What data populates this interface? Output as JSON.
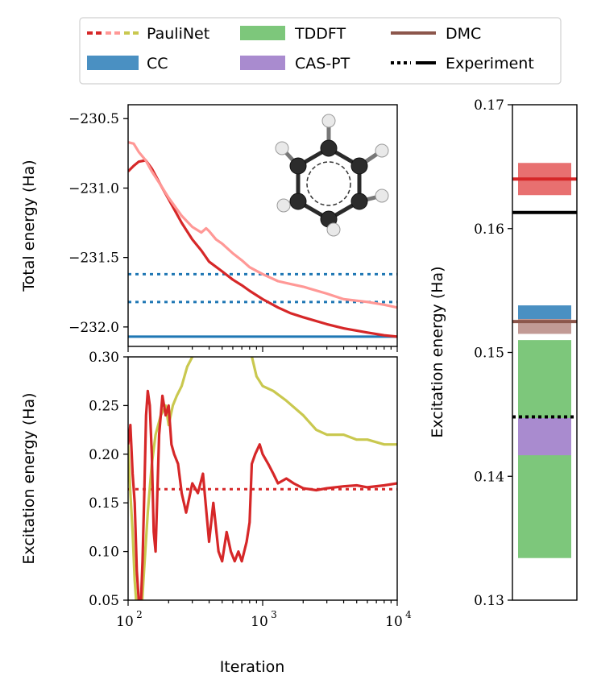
{
  "legend": {
    "placement": "top",
    "entries": [
      {
        "id": "paulinet",
        "label": "PauliNet",
        "style": "line-dashed-pair",
        "colors": [
          "#d62728",
          "#ff9896",
          "#c9c84f"
        ]
      },
      {
        "id": "tddft",
        "label": "TDDFT",
        "style": "patch",
        "color": "#7dc77b"
      },
      {
        "id": "dmc",
        "label": "DMC",
        "style": "line",
        "color": "#8c564b"
      },
      {
        "id": "cc",
        "label": "CC",
        "style": "patch",
        "color": "#4a90c2"
      },
      {
        "id": "caspt",
        "label": "CAS-PT",
        "style": "patch",
        "color": "#a98bcf"
      },
      {
        "id": "experiment",
        "label": "Experiment",
        "style": "line-dotted-solid",
        "color": "#000000"
      }
    ]
  },
  "chart_data": [
    {
      "id": "total-energy",
      "type": "line",
      "xscale": "log",
      "xlim": [
        100,
        10000
      ],
      "ylim": [
        -232.14,
        -230.4
      ],
      "ylabel": "Total energy (Ha)",
      "yticks": [
        -230.5,
        -231.0,
        -231.5,
        -232.0
      ],
      "ytick_labels": [
        "−230.5",
        "−231.0",
        "−231.5",
        "−232.0"
      ],
      "hlines": [
        {
          "name": "CC (excited)",
          "y": -231.62,
          "color": "#1f77b4",
          "style": "dotted"
        },
        {
          "name": "CC (ground, dotted)",
          "y": -231.82,
          "color": "#1f77b4",
          "style": "dotted"
        },
        {
          "name": "CC (ground)",
          "y": -232.07,
          "color": "#1f77b4",
          "style": "solid"
        }
      ],
      "series": [
        {
          "id": "ground",
          "color": "#d62728",
          "x": [
            100,
            110,
            120,
            135,
            150,
            175,
            200,
            250,
            300,
            350,
            400,
            500,
            600,
            700,
            800,
            1000,
            1300,
            1600,
            2000,
            3000,
            4000,
            6000,
            8000,
            10000
          ],
          "y": [
            -230.88,
            -230.84,
            -230.81,
            -230.8,
            -230.86,
            -230.98,
            -231.08,
            -231.25,
            -231.37,
            -231.45,
            -231.53,
            -231.6,
            -231.66,
            -231.7,
            -231.74,
            -231.8,
            -231.86,
            -231.9,
            -231.93,
            -231.98,
            -232.01,
            -232.04,
            -232.06,
            -232.07
          ]
        },
        {
          "id": "excited",
          "color": "#ff9896",
          "x": [
            100,
            110,
            120,
            135,
            150,
            175,
            200,
            250,
            300,
            350,
            380,
            400,
            450,
            500,
            600,
            700,
            800,
            1000,
            1300,
            1600,
            2000,
            3000,
            4000,
            6000,
            8000,
            10000
          ],
          "y": [
            -230.67,
            -230.68,
            -230.74,
            -230.8,
            -230.88,
            -230.98,
            -231.07,
            -231.2,
            -231.28,
            -231.32,
            -231.29,
            -231.31,
            -231.37,
            -231.4,
            -231.47,
            -231.52,
            -231.57,
            -231.62,
            -231.67,
            -231.69,
            -231.71,
            -231.76,
            -231.8,
            -231.82,
            -231.84,
            -231.86
          ]
        }
      ],
      "inset_image": "benzene-molecule"
    },
    {
      "id": "excitation-energy-convergence",
      "type": "line",
      "xscale": "log",
      "xlim": [
        100,
        10000
      ],
      "ylim": [
        0.05,
        0.3
      ],
      "ylabel": "Excitation energy (Ha)",
      "xlabel": "Iteration",
      "yticks": [
        0.05,
        0.1,
        0.15,
        0.2,
        0.25,
        0.3
      ],
      "ytick_labels": [
        "0.05",
        "0.10",
        "0.15",
        "0.20",
        "0.25",
        "0.30"
      ],
      "xticks": [
        100,
        1000,
        10000
      ],
      "xtick_labels": [
        [
          "10",
          "2"
        ],
        [
          "10",
          "3"
        ],
        [
          "10",
          "4"
        ]
      ],
      "hlines": [
        {
          "name": "PauliNet reference",
          "y": 0.164,
          "color": "#d62728",
          "style": "dotted"
        }
      ],
      "series": [
        {
          "id": "difference-unsmoothed",
          "color": "#c9c84f",
          "x": [
            100,
            104,
            108,
            112,
            116,
            120,
            125,
            130,
            140,
            150,
            160,
            175,
            190,
            200,
            215,
            230,
            250,
            275,
            300,
            340,
            380,
            420,
            500,
            600,
            700,
            800,
            900,
            1000,
            1200,
            1500,
            2000,
            2500,
            3000,
            4000,
            5000,
            6000,
            8000,
            10000
          ],
          "y": [
            0.21,
            0.16,
            0.12,
            0.07,
            0.04,
            0.02,
            0.03,
            0.07,
            0.14,
            0.19,
            0.22,
            0.24,
            0.25,
            0.23,
            0.25,
            0.26,
            0.27,
            0.29,
            0.3,
            0.31,
            0.31,
            0.31,
            0.31,
            0.31,
            0.31,
            0.31,
            0.28,
            0.27,
            0.265,
            0.255,
            0.24,
            0.225,
            0.22,
            0.22,
            0.215,
            0.215,
            0.21,
            0.21
          ]
        },
        {
          "id": "difference",
          "color": "#d62728",
          "x": [
            100,
            104,
            108,
            112,
            116,
            120,
            124,
            128,
            132,
            136,
            140,
            145,
            150,
            155,
            160,
            170,
            180,
            190,
            200,
            210,
            220,
            235,
            250,
            270,
            300,
            330,
            360,
            400,
            430,
            470,
            500,
            540,
            580,
            620,
            660,
            700,
            760,
            800,
            830,
            880,
            950,
            1000,
            1100,
            1200,
            1300,
            1500,
            1700,
            2000,
            2500,
            3000,
            4000,
            5000,
            6000,
            8000,
            10000
          ],
          "y": [
            0.21,
            0.23,
            0.18,
            0.15,
            0.08,
            0.05,
            0.04,
            0.09,
            0.16,
            0.24,
            0.265,
            0.25,
            0.2,
            0.12,
            0.1,
            0.22,
            0.26,
            0.24,
            0.25,
            0.21,
            0.2,
            0.19,
            0.16,
            0.14,
            0.17,
            0.16,
            0.18,
            0.11,
            0.15,
            0.1,
            0.09,
            0.12,
            0.1,
            0.09,
            0.1,
            0.09,
            0.11,
            0.13,
            0.19,
            0.2,
            0.21,
            0.2,
            0.19,
            0.18,
            0.17,
            0.175,
            0.17,
            0.165,
            0.163,
            0.165,
            0.167,
            0.168,
            0.166,
            0.168,
            0.17
          ]
        }
      ]
    },
    {
      "id": "excitation-energy-comparison",
      "type": "bar",
      "ylim": [
        0.13,
        0.17
      ],
      "ylabel": "Excitation energy (Ha)",
      "yticks": [
        0.13,
        0.14,
        0.15,
        0.16,
        0.17
      ],
      "ytick_labels": [
        "0.13",
        "0.14",
        "0.15",
        "0.16",
        "0.17"
      ],
      "bands": [
        {
          "name": "TDDFT",
          "y0": 0.1334,
          "y1": 0.151,
          "color": "#7dc77b"
        },
        {
          "name": "CAS-PT",
          "y0": 0.1417,
          "y1": 0.1447,
          "color": "#a98bcf"
        },
        {
          "name": "CC",
          "y0": 0.1522,
          "y1": 0.1538,
          "color": "#4a90c2"
        },
        {
          "name": "DMC band",
          "y0": 0.1515,
          "y1": 0.1527,
          "color": "#c29a95"
        },
        {
          "name": "PauliNet",
          "y0": 0.1627,
          "y1": 0.1653,
          "color": "#e87070"
        }
      ],
      "hlines": [
        {
          "name": "PauliNet",
          "y": 0.164,
          "color": "#d62728",
          "style": "solid"
        },
        {
          "name": "Experiment (theoretical)",
          "y": 0.1613,
          "color": "#000000",
          "style": "solid"
        },
        {
          "name": "DMC",
          "y": 0.1525,
          "color": "#8c564b",
          "style": "solid"
        },
        {
          "name": "Experiment",
          "y": 0.1448,
          "color": "#000000",
          "style": "dotted"
        }
      ]
    }
  ]
}
